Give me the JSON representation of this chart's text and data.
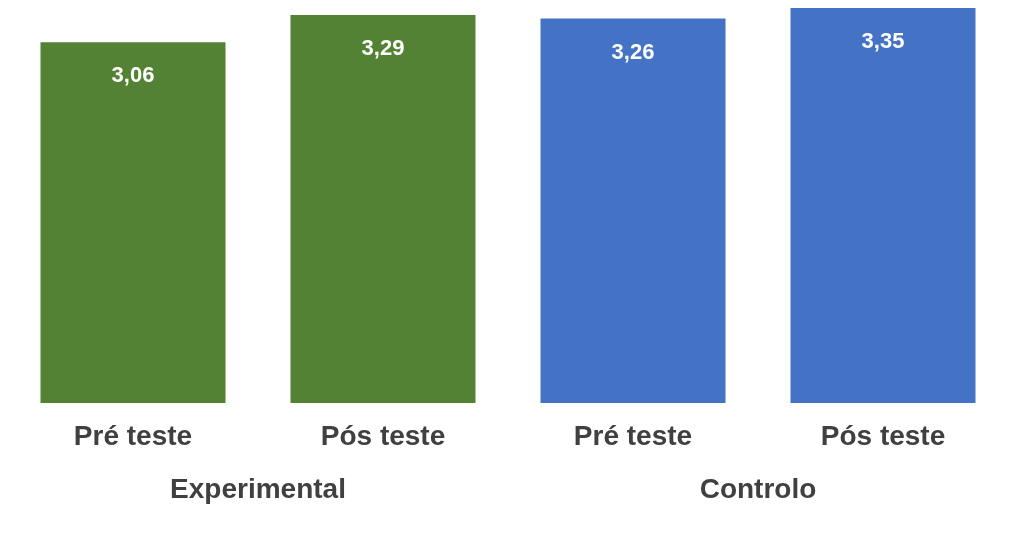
{
  "chart_data": {
    "type": "bar",
    "categories": [
      "Pré teste",
      "Pós teste",
      "Pré teste",
      "Pós teste"
    ],
    "values": [
      3.06,
      3.29,
      3.26,
      3.35
    ],
    "colors": [
      "#548235",
      "#548235",
      "#4472c4",
      "#4472c4"
    ],
    "value_labels": [
      "3,06",
      "3,29",
      "3,26",
      "3,35"
    ],
    "annotations": [
      "Experimental",
      "Controlo"
    ]
  }
}
